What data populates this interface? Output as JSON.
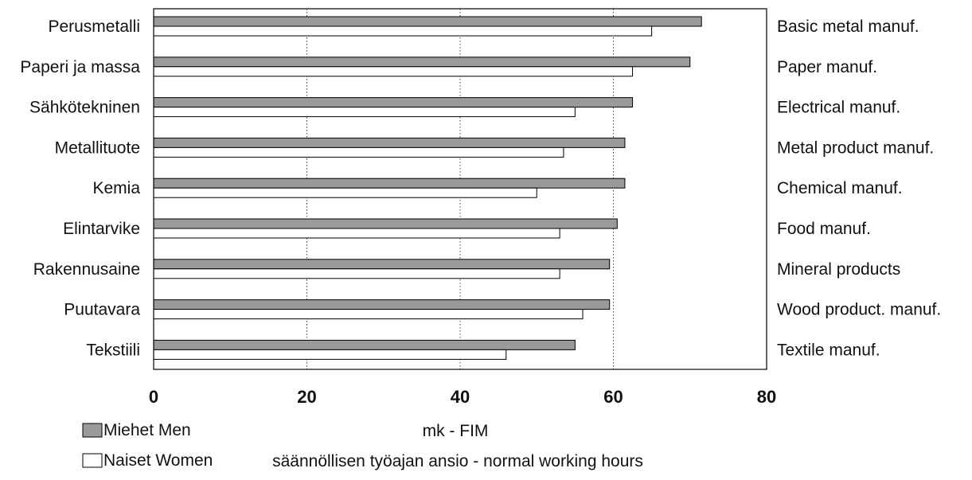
{
  "chart_data": {
    "type": "bar",
    "orientation": "horizontal",
    "categories": [
      "Perusmetalli",
      "Paperi ja massa",
      "Sähkötekninen",
      "Metallituote",
      "Kemia",
      "Elintarvike",
      "Rakennusaine",
      "Puutavara",
      "Tekstiili"
    ],
    "categories_right": [
      "Basic metal manuf.",
      "Paper manuf.",
      "Electrical manuf.",
      "Metal product manuf.",
      "Chemical manuf.",
      "Food manuf.",
      "Mineral products",
      "Wood product. manuf.",
      "Textile manuf."
    ],
    "series": [
      {
        "name": "Miehet Men",
        "values": [
          71.5,
          70,
          62.5,
          61.5,
          61.5,
          60.5,
          59.5,
          59.5,
          55
        ],
        "color": "#9a9a9a"
      },
      {
        "name": "Naiset Women",
        "values": [
          65,
          62.5,
          55,
          53.5,
          50,
          53,
          53,
          56,
          46
        ],
        "color": "#ffffff"
      }
    ],
    "xlabel": "mk - FIM",
    "subtitle": "säännöllisen työajan ansio - normal working hours",
    "xlim": [
      0,
      80
    ],
    "xticks": [
      0,
      20,
      40,
      60,
      80
    ],
    "grid": "vertical dotted",
    "legend_placement": "bottom-left"
  }
}
